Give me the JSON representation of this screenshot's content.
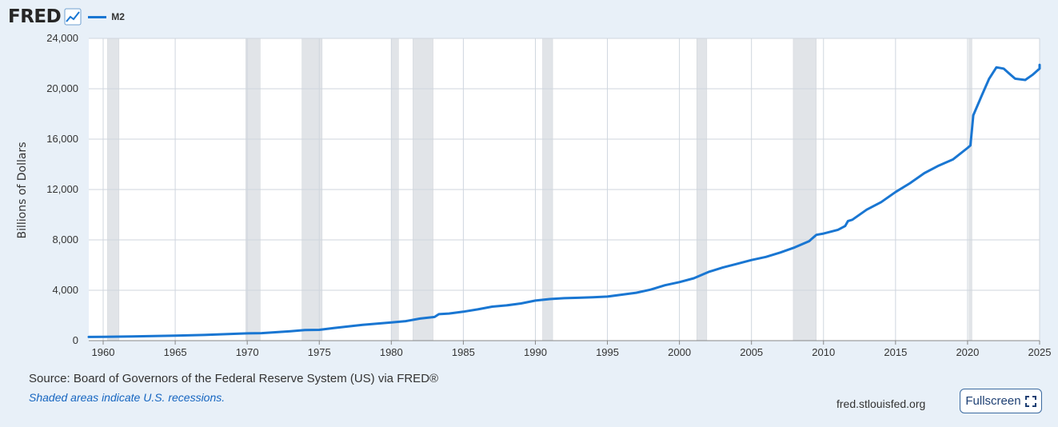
{
  "header": {
    "logo_text": "FRED",
    "legend_label": "M2",
    "logo_icon": "line-chart-icon"
  },
  "footer": {
    "source": "Source: Board of Governors of the Federal Reserve System (US) via FRED®",
    "shaded_note": "Shaded areas indicate U.S. recessions.",
    "site": "fred.stlouisfed.org",
    "fullscreen_label": "Fullscreen",
    "fullscreen_icon": "expand-icon"
  },
  "colors": {
    "series": "#1976d2",
    "recession": "#e1e4e8",
    "background": "#e8f0f8"
  },
  "chart_data": {
    "type": "line",
    "title": "",
    "xlabel": "",
    "ylabel": "Billions of Dollars",
    "xlim": [
      1959,
      2025
    ],
    "ylim": [
      0,
      24000
    ],
    "grid": true,
    "legend": "top-left",
    "x_ticks": [
      1960,
      1965,
      1970,
      1975,
      1980,
      1985,
      1990,
      1995,
      2000,
      2005,
      2010,
      2015,
      2020,
      2025
    ],
    "y_ticks": [
      0,
      4000,
      8000,
      12000,
      16000,
      20000,
      24000
    ],
    "y_tick_labels": [
      "0",
      "4,000",
      "8,000",
      "12,000",
      "16,000",
      "20,000",
      "24,000"
    ],
    "recessions": [
      [
        1960.3,
        1961.1
      ],
      [
        1969.9,
        1970.9
      ],
      [
        1973.8,
        1975.2
      ],
      [
        1980.0,
        1980.5
      ],
      [
        1981.5,
        1982.9
      ],
      [
        1990.5,
        1991.2
      ],
      [
        2001.2,
        2001.9
      ],
      [
        2007.9,
        2009.5
      ],
      [
        2020.1,
        2020.3
      ]
    ],
    "series": [
      {
        "name": "M2",
        "points": [
          [
            1959.0,
            290
          ],
          [
            1960.0,
            300
          ],
          [
            1962.0,
            330
          ],
          [
            1965.0,
            400
          ],
          [
            1967.0,
            450
          ],
          [
            1970.0,
            580
          ],
          [
            1971.0,
            600
          ],
          [
            1973.0,
            750
          ],
          [
            1974.0,
            840
          ],
          [
            1975.0,
            860
          ],
          [
            1976.0,
            1000
          ],
          [
            1977.0,
            1130
          ],
          [
            1978.0,
            1250
          ],
          [
            1979.0,
            1350
          ],
          [
            1980.0,
            1450
          ],
          [
            1981.0,
            1550
          ],
          [
            1982.0,
            1750
          ],
          [
            1983.0,
            1880
          ],
          [
            1983.3,
            2100
          ],
          [
            1984.0,
            2150
          ],
          [
            1985.0,
            2300
          ],
          [
            1986.0,
            2480
          ],
          [
            1987.0,
            2700
          ],
          [
            1988.0,
            2800
          ],
          [
            1989.0,
            2950
          ],
          [
            1990.0,
            3180
          ],
          [
            1991.0,
            3300
          ],
          [
            1992.0,
            3370
          ],
          [
            1993.0,
            3400
          ],
          [
            1994.0,
            3450
          ],
          [
            1995.0,
            3500
          ],
          [
            1996.0,
            3650
          ],
          [
            1997.0,
            3800
          ],
          [
            1998.0,
            4050
          ],
          [
            1999.0,
            4400
          ],
          [
            2000.0,
            4650
          ],
          [
            2001.0,
            4950
          ],
          [
            2002.0,
            5450
          ],
          [
            2003.0,
            5800
          ],
          [
            2004.0,
            6100
          ],
          [
            2005.0,
            6400
          ],
          [
            2006.0,
            6650
          ],
          [
            2007.0,
            7000
          ],
          [
            2008.0,
            7400
          ],
          [
            2009.0,
            7900
          ],
          [
            2009.5,
            8400
          ],
          [
            2010.0,
            8500
          ],
          [
            2011.0,
            8800
          ],
          [
            2011.5,
            9100
          ],
          [
            2011.7,
            9500
          ],
          [
            2012.0,
            9600
          ],
          [
            2013.0,
            10400
          ],
          [
            2014.0,
            11000
          ],
          [
            2015.0,
            11800
          ],
          [
            2016.0,
            12500
          ],
          [
            2017.0,
            13300
          ],
          [
            2018.0,
            13900
          ],
          [
            2019.0,
            14400
          ],
          [
            2020.0,
            15300
          ],
          [
            2020.2,
            15500
          ],
          [
            2020.4,
            17900
          ],
          [
            2021.0,
            19500
          ],
          [
            2021.5,
            20800
          ],
          [
            2022.0,
            21700
          ],
          [
            2022.5,
            21600
          ],
          [
            2023.0,
            21100
          ],
          [
            2023.3,
            20800
          ],
          [
            2024.0,
            20700
          ],
          [
            2024.5,
            21100
          ],
          [
            2025.0,
            21600
          ],
          [
            2025.5,
            21900
          ]
        ]
      }
    ]
  }
}
